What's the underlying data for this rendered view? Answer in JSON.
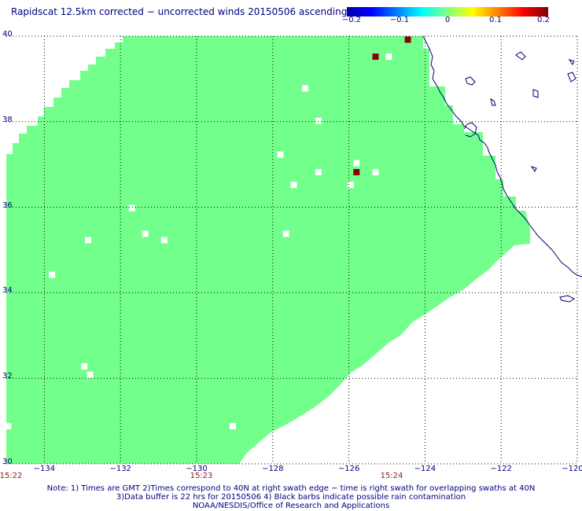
{
  "title": "Rapidscat 12.5km corrected − uncorrected winds 20150506 ascending",
  "colorbar": {
    "ticks": [
      "−0.2",
      "−0.1",
      "0",
      "0.1",
      "0.2"
    ],
    "range": [
      -0.2,
      0.2
    ],
    "colors": [
      "#0000aa",
      "#0000ff",
      "#0080ff",
      "#00ffff",
      "#80ff80",
      "#ffff00",
      "#ff8000",
      "#ff0000",
      "#800000"
    ]
  },
  "axes": {
    "lat_labels": [
      "40",
      "38",
      "36",
      "34",
      "32",
      "30"
    ],
    "lat_values": [
      40,
      38,
      36,
      34,
      32,
      30
    ],
    "lon_labels": [
      "−134",
      "−132",
      "−130",
      "−128",
      "−126",
      "−124",
      "−122",
      "−120"
    ],
    "lon_values": [
      -134,
      -132,
      -130,
      -128,
      -126,
      -124,
      -122,
      -120
    ],
    "lat_range": [
      30,
      40
    ],
    "lon_range": [
      -135,
      -120
    ],
    "grid": "dotted"
  },
  "time_labels": [
    {
      "text": "15:22",
      "lon": -135
    },
    {
      "text": "15:23",
      "lon": -130
    },
    {
      "text": "15:24",
      "lon": -125
    }
  ],
  "colors": {
    "swath": "#73ff8c",
    "coast": "#00006e",
    "text": "#000080",
    "grid": "#000000",
    "time_text": "#8b1a1a",
    "positive_max": "#8b0000"
  },
  "swath_field_value": 0.0,
  "red_cells": [
    {
      "lat": 39.92,
      "lon": -124.45,
      "value": 0.2
    },
    {
      "lat": 39.52,
      "lon": -125.3,
      "value": 0.2
    },
    {
      "lat": 36.82,
      "lon": -125.8,
      "value": 0.2
    }
  ],
  "missing_cells": [
    {
      "lat": 39.52,
      "lon": -124.95
    },
    {
      "lat": 38.78,
      "lon": -127.15
    },
    {
      "lat": 38.02,
      "lon": -126.8
    },
    {
      "lat": 37.23,
      "lon": -127.8
    },
    {
      "lat": 37.03,
      "lon": -125.8
    },
    {
      "lat": 36.82,
      "lon": -126.8
    },
    {
      "lat": 36.82,
      "lon": -125.3
    },
    {
      "lat": 36.52,
      "lon": -127.45
    },
    {
      "lat": 36.52,
      "lon": -125.95
    },
    {
      "lat": 35.98,
      "lon": -131.7
    },
    {
      "lat": 35.38,
      "lon": -127.65
    },
    {
      "lat": 35.38,
      "lon": -131.35
    },
    {
      "lat": 35.23,
      "lon": -130.85
    },
    {
      "lat": 35.23,
      "lon": -132.85
    },
    {
      "lat": 34.42,
      "lon": -133.8
    },
    {
      "lat": 32.28,
      "lon": -132.95
    },
    {
      "lat": 32.08,
      "lon": -132.8
    },
    {
      "lat": 30.88,
      "lon": -129.05
    },
    {
      "lat": 30.88,
      "lon": -134.95
    }
  ],
  "notes": [
    "Note: 1) Times are GMT 2)Times correspond to 40N at right swath edge − time is right swath for overlapping swaths at 40N",
    "3)Data buffer is 22 hrs for 20150506 4) Black barbs indicate possible rain contamination",
    "NOAA/NESDIS/Office of Research and Applications"
  ]
}
